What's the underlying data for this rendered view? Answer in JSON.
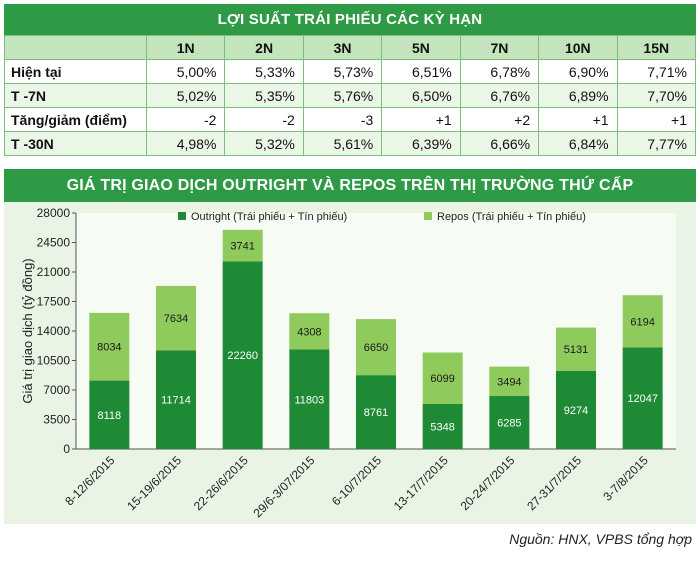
{
  "table": {
    "title": "LỢI SUẤT TRÁI PHIẾU CÁC KỲ HẠN",
    "columns": [
      "",
      "1N",
      "2N",
      "3N",
      "5N",
      "7N",
      "10N",
      "15N"
    ],
    "rows": [
      {
        "label": "Hiện tại",
        "values": [
          "5,00%",
          "5,33%",
          "5,73%",
          "6,51%",
          "6,78%",
          "6,90%",
          "7,71%"
        ]
      },
      {
        "label": "T -7N",
        "values": [
          "5,02%",
          "5,35%",
          "5,76%",
          "6,50%",
          "6,76%",
          "6,89%",
          "7,70%"
        ]
      },
      {
        "label": "Tăng/giảm (điểm)",
        "values": [
          "-2",
          "-2",
          "-3",
          "+1",
          "+2",
          "+1",
          "+1"
        ]
      },
      {
        "label": "T -30N",
        "values": [
          "4,98%",
          "5,32%",
          "5,61%",
          "6,39%",
          "6,66%",
          "6,84%",
          "7,77%"
        ]
      }
    ]
  },
  "chart_data": {
    "type": "bar",
    "stacked": true,
    "title": "GIÁ TRỊ GIAO DỊCH OUTRIGHT VÀ REPOS TRÊN THỊ TRƯỜNG THỨ CẤP",
    "ylabel": "Giá trị giao dịch (tỷ đồng)",
    "xlabel": "",
    "ylim": [
      0,
      28000
    ],
    "yticks": [
      0,
      3500,
      7000,
      10500,
      14000,
      17500,
      21000,
      24500,
      28000
    ],
    "categories": [
      "8-12/6/2015",
      "15-19/6/2015",
      "22-26/6/2015",
      "29/6-3/07/2015",
      "6-10/7/2015",
      "13-17/7/2015",
      "20-24/7/2015",
      "27-31/7/2015",
      "3-7/8/2015"
    ],
    "series": [
      {
        "name": "Outright (Trái phiếu + Tín phiếu)",
        "color": "#1e8a35",
        "values": [
          8118,
          11714,
          22260,
          11803,
          8761,
          5348,
          6285,
          9274,
          12047
        ]
      },
      {
        "name": "Repos (Trái phiếu + Tín phiếu)",
        "color": "#8fca5c",
        "values": [
          8034,
          7634,
          3741,
          4308,
          6650,
          6099,
          3494,
          5131,
          6194
        ]
      }
    ],
    "legend": "top"
  },
  "source": "Nguồn: HNX, VPBS tổng hợp"
}
